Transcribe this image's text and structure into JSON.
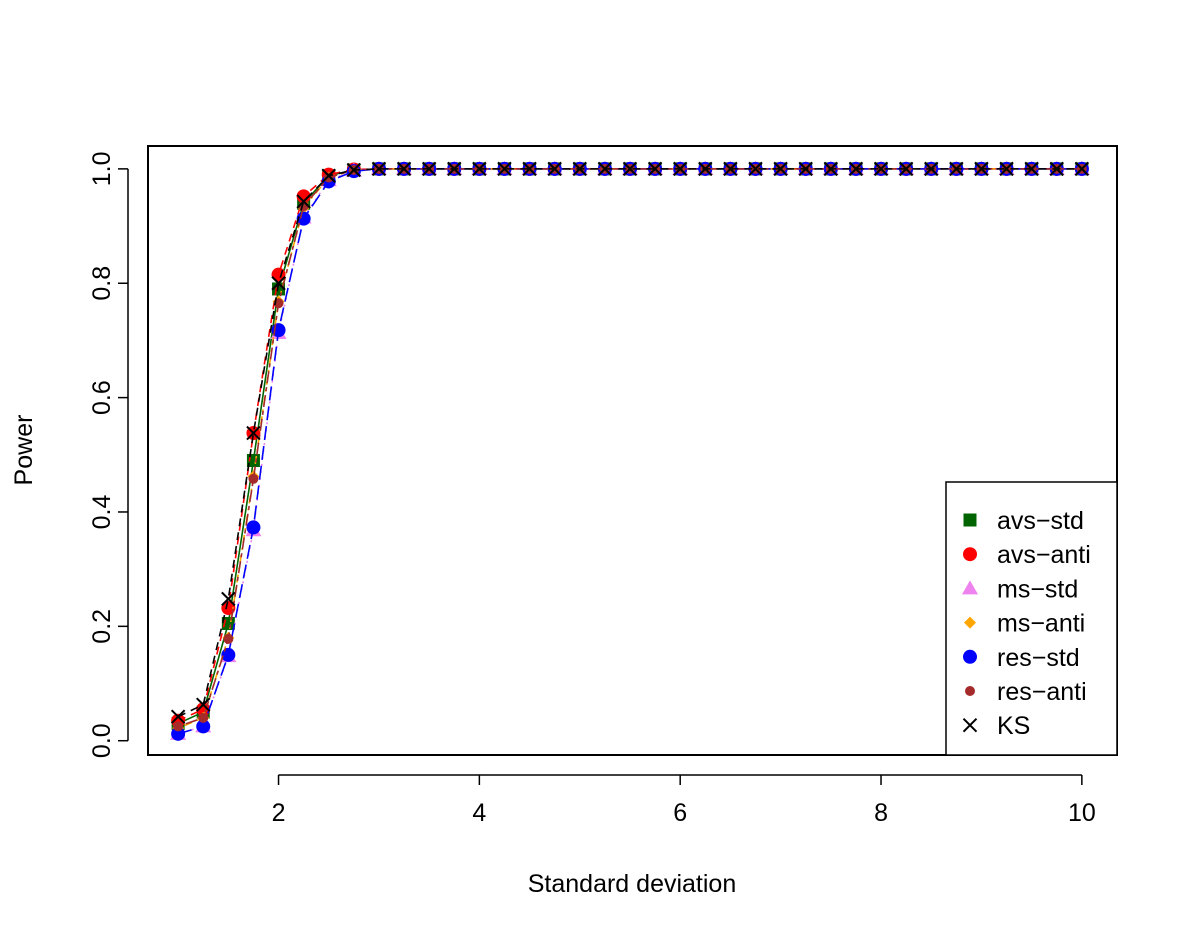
{
  "chart_data": {
    "type": "line",
    "title": "",
    "xlabel": "Standard deviation",
    "ylabel": "Power",
    "xlim": [
      0.7,
      10.35
    ],
    "ylim": [
      -0.025,
      1.04
    ],
    "x_ticks": [
      2,
      4,
      6,
      8,
      10
    ],
    "y_ticks": [
      0.0,
      0.2,
      0.4,
      0.6,
      0.8,
      1.0
    ],
    "y_tick_labels": [
      "0.0",
      "0.2",
      "0.4",
      "0.6",
      "0.8",
      "1.0"
    ],
    "grid": false,
    "legend_position": "bottom-right",
    "x": [
      1.0,
      1.25,
      1.5,
      1.75,
      2.0,
      2.25,
      2.5,
      2.75,
      3.0,
      3.25,
      3.5,
      3.75,
      4.0,
      4.25,
      4.5,
      4.75,
      5.0,
      5.25,
      5.5,
      5.75,
      6.0,
      6.25,
      6.5,
      6.75,
      7.0,
      7.25,
      7.5,
      7.75,
      8.0,
      8.25,
      8.5,
      8.75,
      9.0,
      9.25,
      9.5,
      9.75,
      10.0
    ],
    "series": [
      {
        "name": "avs−std",
        "color": "#006400",
        "marker": "square",
        "line": "solid",
        "values": [
          0.03,
          0.05,
          0.205,
          0.49,
          0.79,
          0.94,
          0.988,
          0.998,
          1,
          1,
          1,
          1,
          1,
          1,
          1,
          1,
          1,
          1,
          1,
          1,
          1,
          1,
          1,
          1,
          1,
          1,
          1,
          1,
          1,
          1,
          1,
          1,
          1,
          1,
          1,
          1,
          1
        ]
      },
      {
        "name": "avs−anti",
        "color": "#ff0000",
        "marker": "circle",
        "line": "dashed",
        "values": [
          0.035,
          0.055,
          0.232,
          0.538,
          0.815,
          0.952,
          0.99,
          0.999,
          1,
          1,
          1,
          1,
          1,
          1,
          1,
          1,
          1,
          1,
          1,
          1,
          1,
          1,
          1,
          1,
          1,
          1,
          1,
          1,
          1,
          1,
          1,
          1,
          1,
          1,
          1,
          1,
          1
        ]
      },
      {
        "name": "ms−std",
        "color": "#ee82ee",
        "marker": "triangle",
        "line": "dotted",
        "values": [
          0.012,
          0.025,
          0.148,
          0.368,
          0.713,
          0.915,
          0.98,
          0.997,
          1,
          1,
          1,
          1,
          1,
          1,
          1,
          1,
          1,
          1,
          1,
          1,
          1,
          1,
          1,
          1,
          1,
          1,
          1,
          1,
          1,
          1,
          1,
          1,
          1,
          1,
          1,
          1,
          1
        ]
      },
      {
        "name": "ms−anti",
        "color": "#ffa500",
        "marker": "diamond",
        "line": "dotdash",
        "values": [
          0.022,
          0.04,
          0.18,
          0.462,
          0.768,
          0.932,
          0.985,
          0.998,
          1,
          1,
          1,
          1,
          1,
          1,
          1,
          1,
          1,
          1,
          1,
          1,
          1,
          1,
          1,
          1,
          1,
          1,
          1,
          1,
          1,
          1,
          1,
          1,
          1,
          1,
          1,
          1,
          1
        ]
      },
      {
        "name": "res−std",
        "color": "#0000ff",
        "marker": "circle",
        "line": "longdash",
        "values": [
          0.012,
          0.025,
          0.15,
          0.373,
          0.718,
          0.913,
          0.978,
          0.996,
          1,
          1,
          1,
          1,
          1,
          1,
          1,
          1,
          1,
          1,
          1,
          1,
          1,
          1,
          1,
          1,
          1,
          1,
          1,
          1,
          1,
          1,
          1,
          1,
          1,
          1,
          1,
          1,
          1
        ]
      },
      {
        "name": "res−anti",
        "color": "#a52a2a",
        "marker": "smallcircle",
        "line": "twodash",
        "values": [
          0.025,
          0.04,
          0.178,
          0.458,
          0.765,
          0.935,
          0.985,
          0.998,
          1,
          1,
          1,
          1,
          1,
          1,
          1,
          1,
          1,
          1,
          1,
          1,
          1,
          1,
          1,
          1,
          1,
          1,
          1,
          1,
          1,
          1,
          1,
          1,
          1,
          1,
          1,
          1,
          1
        ]
      },
      {
        "name": "KS",
        "color": "#000000",
        "marker": "cross",
        "line": "dashed",
        "values": [
          0.042,
          0.063,
          0.248,
          0.538,
          0.8,
          0.943,
          0.988,
          0.998,
          1,
          1,
          1,
          1,
          1,
          1,
          1,
          1,
          1,
          1,
          1,
          1,
          1,
          1,
          1,
          1,
          1,
          1,
          1,
          1,
          1,
          1,
          1,
          1,
          1,
          1,
          1,
          1,
          1
        ]
      }
    ]
  }
}
